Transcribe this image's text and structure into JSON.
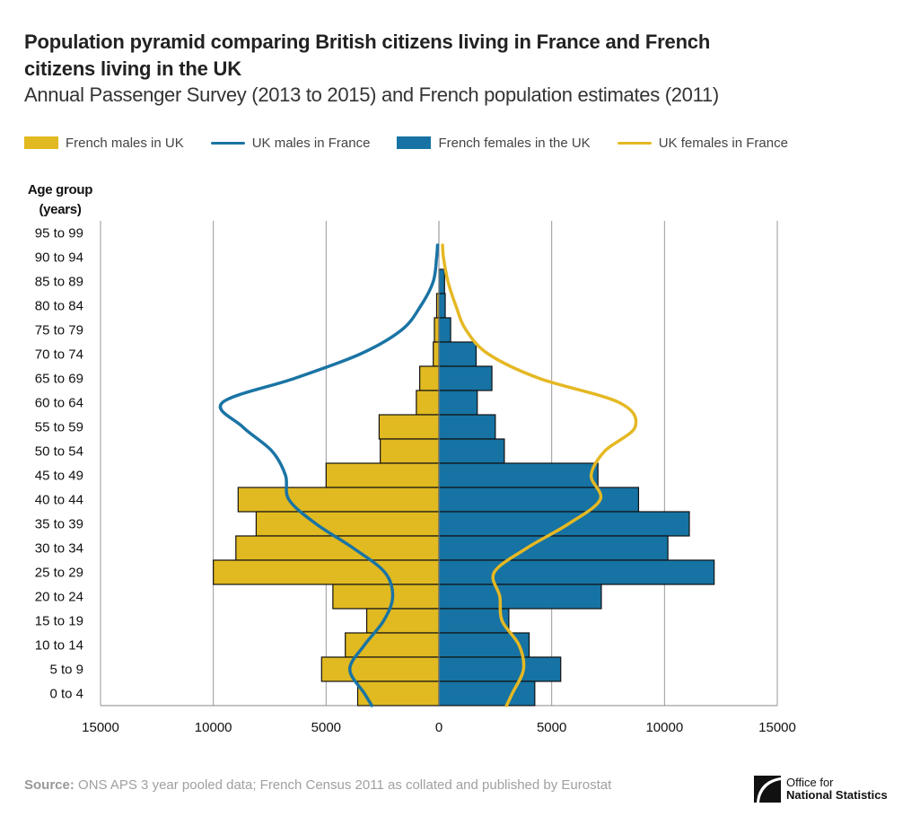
{
  "header": {
    "title": "Population pyramid comparing British citizens living in France and French citizens living in the UK",
    "subtitle": "Annual Passenger Survey (2013 to 2015) and French population estimates (2011)"
  },
  "legend": [
    {
      "label": "French males in UK",
      "kind": "bar",
      "color": "#e1b921"
    },
    {
      "label": "UK males in France",
      "kind": "line",
      "color": "#1a74a4"
    },
    {
      "label": "French females in the UK",
      "kind": "bar",
      "color": "#1673a3"
    },
    {
      "label": "UK females in France",
      "kind": "line",
      "color": "#e5b824"
    }
  ],
  "chart_data": {
    "type": "bar",
    "subtype": "population-pyramid-with-lines",
    "title": "Population pyramid comparing British citizens living in France and French citizens living in the UK",
    "subtitle": "Annual Passenger Survey (2013 to 2015) and French population estimates (2011)",
    "ylabel": "Age group (years)",
    "xlabel": "",
    "xlim": [
      -15000,
      15000
    ],
    "xticks": [
      -15000,
      -10000,
      -5000,
      0,
      5000,
      10000,
      15000
    ],
    "xtick_labels": [
      "15000",
      "10000",
      "5000",
      "0",
      "5000",
      "10000",
      "15000"
    ],
    "grid": true,
    "legend_position": "top",
    "categories": [
      "95 to 99",
      "90 to 94",
      "85 to 89",
      "80 to 84",
      "75 to 79",
      "70 to 74",
      "65 to 69",
      "60 to 64",
      "55 to 59",
      "50 to 54",
      "45 to 49",
      "40 to 44",
      "35 to 39",
      "30 to 34",
      "25 to 29",
      "20 to 24",
      "15 to 19",
      "10 to 14",
      "5 to 9",
      "0 to 4"
    ],
    "series": [
      {
        "name": "French males in UK",
        "type": "bar",
        "side": "left",
        "color": "#e1b921",
        "values": [
          0,
          0,
          0,
          100,
          200,
          250,
          850,
          1000,
          2650,
          2600,
          5000,
          8900,
          8100,
          9000,
          10000,
          4700,
          3200,
          4150,
          5200,
          3600
        ]
      },
      {
        "name": "French females in the UK",
        "type": "bar",
        "side": "right",
        "color": "#1673a3",
        "values": [
          0,
          0,
          250,
          280,
          520,
          1650,
          2350,
          1700,
          2500,
          2900,
          7050,
          8850,
          11100,
          10150,
          12200,
          7200,
          3100,
          4000,
          5400,
          4250
        ]
      },
      {
        "name": "UK males in France",
        "type": "line",
        "side": "left",
        "color": "#1a74a4",
        "values": [
          null,
          100,
          250,
          800,
          1650,
          3500,
          6400,
          9600,
          8700,
          7400,
          6800,
          6650,
          5450,
          3800,
          2400,
          2050,
          2450,
          3300,
          3950,
          3300
        ]
      },
      {
        "name": "UK females in France",
        "type": "line",
        "side": "right",
        "color": "#e5b824",
        "values": [
          null,
          200,
          400,
          750,
          1200,
          2200,
          4450,
          8000,
          8700,
          7350,
          6750,
          7150,
          5750,
          3900,
          2450,
          2700,
          2800,
          3550,
          3750,
          3250
        ]
      }
    ]
  },
  "footer": {
    "source_label": "Source:",
    "source_text": " ONS APS 3 year pooled data; French Census 2011 as collated and published by Eurostat",
    "logo_line1": "Office for",
    "logo_line2": "National Statistics"
  },
  "yaxis_title_line1": "Age group",
  "yaxis_title_line2": "(years)"
}
